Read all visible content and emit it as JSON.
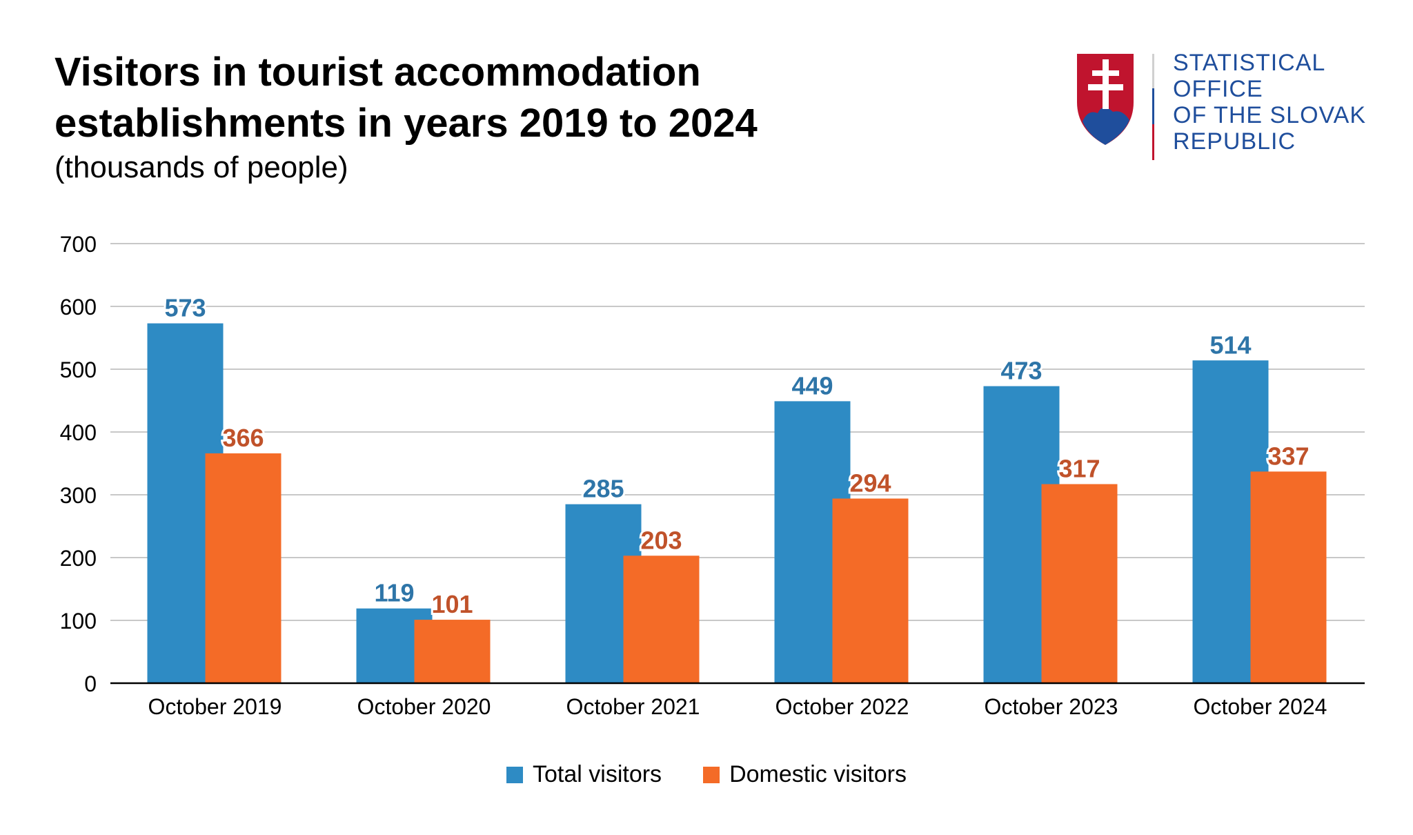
{
  "chart_data": {
    "type": "bar",
    "title": "Visitors in tourist accommodation establishments in years 2019 to 2024",
    "subtitle": "(thousands of people)",
    "categories": [
      "October 2019",
      "October 2020",
      "October 2021",
      "October 2022",
      "October 2023",
      "October 2024"
    ],
    "series": [
      {
        "name": "Total visitors",
        "values": [
          573,
          119,
          285,
          449,
          473,
          514
        ],
        "color": "#2e8bc4",
        "label_color": "#2e75a8"
      },
      {
        "name": "Domestic visitors",
        "values": [
          366,
          101,
          203,
          294,
          317,
          337
        ],
        "color": "#f46b27",
        "label_color": "#c0522a"
      }
    ],
    "ylim": [
      0,
      700
    ],
    "yticks": [
      0,
      100,
      200,
      300,
      400,
      500,
      600,
      700
    ],
    "grid": true,
    "legend": "bottom",
    "data_labels": true
  },
  "logo": {
    "text_lines": [
      "STATISTICAL",
      "OFFICE",
      "OF THE SLOVAK",
      "REPUBLIC"
    ],
    "colors": {
      "blue": "#1f4e9c",
      "red": "#c0142e"
    }
  }
}
